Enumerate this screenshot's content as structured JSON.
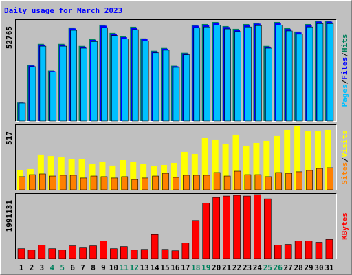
{
  "chart_data": [
    {
      "type": "bar",
      "title": "Daily usage for March 2023",
      "title_color": "#0000ff",
      "legend_separator": "/",
      "series": [
        {
          "name": "Hits",
          "color": "#00805c",
          "values": [
            9692,
            29434,
            40561,
            26562,
            40561,
            49176,
            39484,
            43073,
            50611,
            46304,
            44509,
            49535,
            43432,
            36971,
            38407,
            29075,
            35894,
            50611,
            50970,
            52047,
            49894,
            48458,
            50970,
            51688,
            39484,
            52047,
            48817,
            47022,
            50970,
            52765,
            52765
          ]
        },
        {
          "name": "Files",
          "color": "#0000ff",
          "values": [
            9590,
            29130,
            40150,
            26290,
            40150,
            48680,
            39080,
            42640,
            50100,
            45840,
            44060,
            49030,
            43000,
            36600,
            38020,
            28780,
            35530,
            50100,
            50460,
            51520,
            49390,
            47970,
            50460,
            51170,
            39080,
            51520,
            48320,
            46550,
            50460,
            52230,
            52230
          ]
        },
        {
          "name": "Pages",
          "color": "#00c0ff",
          "values": [
            9400,
            28550,
            39350,
            25770,
            39350,
            47700,
            38300,
            41780,
            49090,
            44920,
            43180,
            48050,
            42130,
            35860,
            37260,
            28200,
            34820,
            49090,
            49440,
            50490,
            48400,
            47000,
            49440,
            50140,
            38300,
            50490,
            47350,
            45610,
            49440,
            51180,
            51180
          ]
        }
      ],
      "ylim": [
        0,
        52765
      ],
      "yticks": [
        52765
      ]
    },
    {
      "type": "bar",
      "legend_separator": "/",
      "series": [
        {
          "name": "Visits",
          "color": "#ffff00",
          "values": [
            156,
            167,
            284,
            272,
            261,
            245,
            250,
            206,
            228,
            195,
            239,
            228,
            206,
            189,
            200,
            217,
            306,
            289,
            417,
            406,
            367,
            445,
            356,
            378,
            395,
            434,
            484,
            517,
            478,
            478,
            484
          ]
        },
        {
          "name": "Sites",
          "color": "#ff8000",
          "values": [
            106,
            122,
            128,
            111,
            117,
            117,
            95,
            111,
            106,
            95,
            106,
            83,
            95,
            111,
            133,
            100,
            117,
            117,
            117,
            139,
            111,
            150,
            122,
            122,
            106,
            139,
            133,
            145,
            156,
            172,
            178
          ]
        }
      ],
      "ylim": [
        0,
        517
      ],
      "yticks": [
        517
      ]
    },
    {
      "type": "bar",
      "categories": [
        "1",
        "2",
        "3",
        "4",
        "5",
        "6",
        "7",
        "8",
        "9",
        "10",
        "11",
        "12",
        "13",
        "14",
        "15",
        "16",
        "17",
        "18",
        "19",
        "20",
        "21",
        "22",
        "23",
        "24",
        "25",
        "26",
        "27",
        "28",
        "29",
        "30",
        "31"
      ],
      "category_colors": [
        "#000000",
        "#000000",
        "#000000",
        "#00805c",
        "#00805c",
        "#000000",
        "#000000",
        "#000000",
        "#000000",
        "#000000",
        "#00805c",
        "#00805c",
        "#000000",
        "#000000",
        "#000000",
        "#000000",
        "#000000",
        "#00805c",
        "#00805c",
        "#000000",
        "#000000",
        "#000000",
        "#000000",
        "#000000",
        "#00805c",
        "#00805c",
        "#000000",
        "#000000",
        "#000000",
        "#000000",
        "#000000"
      ],
      "series": [
        {
          "name": "KBytes",
          "color": "#ff0000",
          "values": [
            306000,
            262000,
            416000,
            306000,
            262000,
            394000,
            350000,
            394000,
            547000,
            306000,
            372000,
            262000,
            284000,
            744000,
            284000,
            241000,
            481000,
            1181556,
            1728000,
            1903000,
            1947000,
            1969000,
            1947000,
            1991131,
            1860000,
            416000,
            438000,
            547000,
            547000,
            503000,
            591000
          ]
        }
      ],
      "ylim": [
        0,
        1991131
      ],
      "yticks": [
        1991131
      ]
    }
  ]
}
